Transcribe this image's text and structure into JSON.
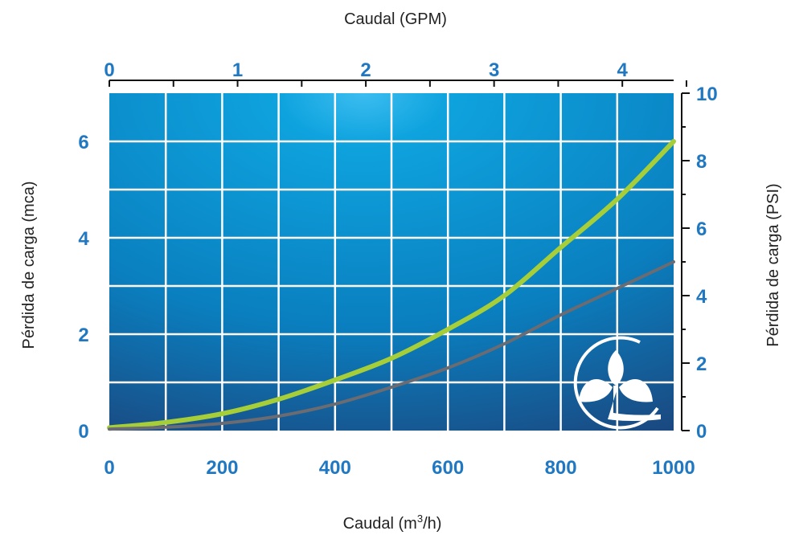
{
  "chart_data": {
    "type": "line",
    "top_axis": {
      "title": "Caudal (GPM)",
      "ticks": [
        0,
        1,
        2,
        3,
        4
      ],
      "minor_ticks": [
        0.5,
        1.5,
        2.5,
        3.5,
        4.5
      ]
    },
    "bottom_axis": {
      "title": "Caudal  (m³/h)",
      "ticks": [
        0,
        200,
        400,
        600,
        800,
        1000
      ],
      "range": [
        0,
        1000
      ]
    },
    "left_axis": {
      "title": "Pérdida de carga (mca)",
      "ticks": [
        0,
        2,
        4,
        6
      ],
      "range": [
        0,
        7
      ]
    },
    "right_axis": {
      "title": "Pérdida de carga (PSI)",
      "ticks": [
        0,
        2,
        4,
        6,
        8,
        10
      ],
      "range": [
        0,
        10
      ]
    },
    "grid": true,
    "background": {
      "gradient": [
        "#0aa3df",
        "#1c3f73"
      ]
    },
    "series": [
      {
        "color": "#a6ce39",
        "x": [
          0,
          100,
          200,
          300,
          400,
          500,
          600,
          700,
          800,
          900,
          1000
        ],
        "y": [
          0.06,
          0.17,
          0.35,
          0.65,
          1.05,
          1.5,
          2.1,
          2.8,
          3.8,
          4.8,
          6.0
        ]
      },
      {
        "color": "#6b6b72",
        "x": [
          0,
          100,
          200,
          300,
          400,
          500,
          600,
          700,
          800,
          900,
          1000
        ],
        "y": [
          0.03,
          0.07,
          0.15,
          0.3,
          0.55,
          0.9,
          1.3,
          1.8,
          2.4,
          2.95,
          3.5
        ]
      }
    ]
  },
  "logo": {
    "name": "plant-sprout-logo-icon",
    "color": "#ffffff"
  }
}
